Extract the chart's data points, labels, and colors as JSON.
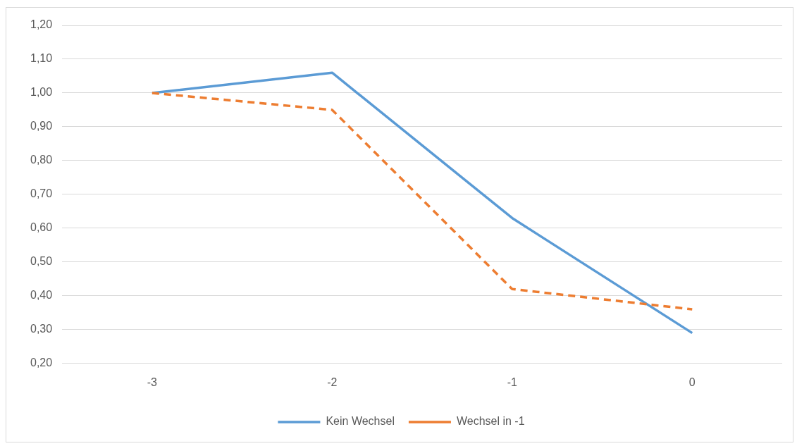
{
  "chart_data": {
    "type": "line",
    "categories": [
      "-3",
      "-2",
      "-1",
      "0"
    ],
    "series": [
      {
        "name": "Kein Wechsel",
        "color": "#5b9bd5",
        "line_style": "solid",
        "values": [
          1.0,
          1.06,
          0.63,
          0.29
        ]
      },
      {
        "name": "Wechsel in -1",
        "color": "#ed7d31",
        "line_style": "dashed",
        "values": [
          1.0,
          0.95,
          0.42,
          0.36
        ]
      }
    ],
    "ylim": [
      0.2,
      1.2
    ],
    "yticks": [
      {
        "value": 0.2,
        "label": "0,20"
      },
      {
        "value": 0.3,
        "label": "0,30"
      },
      {
        "value": 0.4,
        "label": "0,40"
      },
      {
        "value": 0.5,
        "label": "0,50"
      },
      {
        "value": 0.6,
        "label": "0,60"
      },
      {
        "value": 0.7,
        "label": "0,70"
      },
      {
        "value": 0.8,
        "label": "0,80"
      },
      {
        "value": 0.9,
        "label": "0,90"
      },
      {
        "value": 1.0,
        "label": "1,00"
      },
      {
        "value": 1.1,
        "label": "1,10"
      },
      {
        "value": 1.2,
        "label": "1,20"
      }
    ],
    "grid": "y",
    "legend": "bottom",
    "marker": "none"
  }
}
